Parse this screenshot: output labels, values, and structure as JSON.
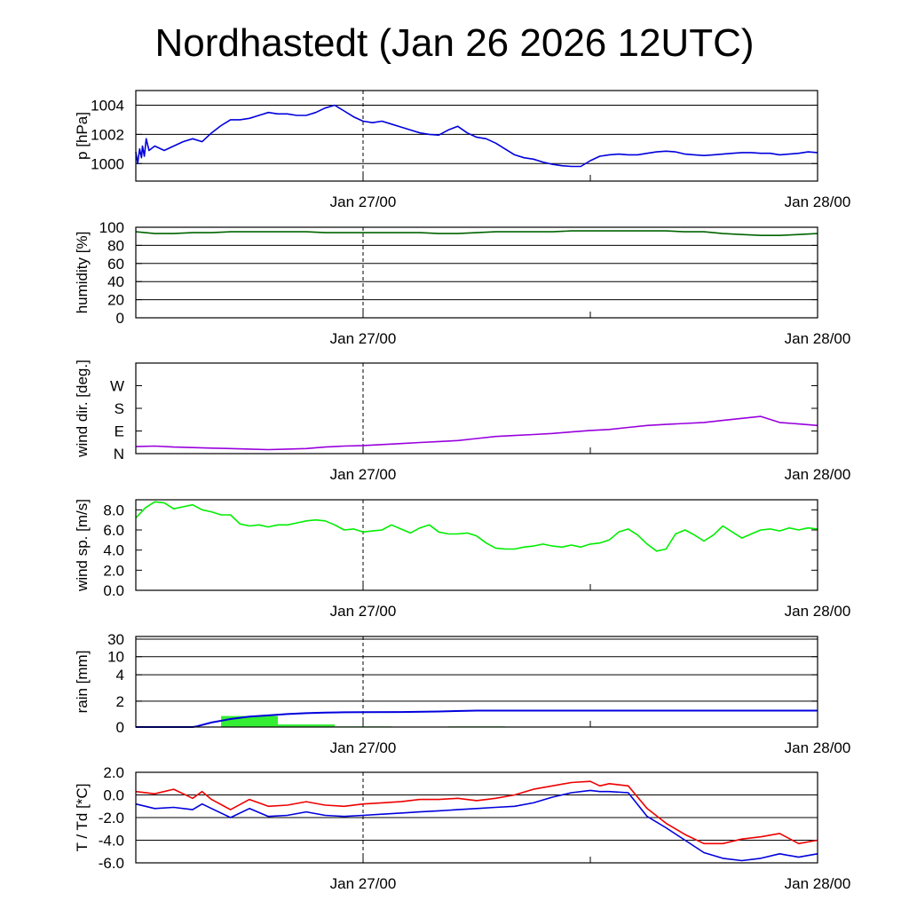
{
  "title": "Nordhastedt (Jan 26 2026 12UTC)",
  "colors": {
    "pressure": "#0000dd",
    "humidity": "#006400",
    "wind_dir": "#9900dd",
    "wind_speed": "#00ee00",
    "rain_bars": "#33ee33",
    "rain_total": "#0000dd",
    "temperature": "#ee0000",
    "dewpoint": "#0000dd"
  },
  "chart_data": [
    {
      "type": "line",
      "ylabel": "p [hPa]",
      "x_ticklabels": [
        "Jan 27/00",
        "Jan 28/00"
      ],
      "x": [
        0,
        0.1,
        0.2,
        0.3,
        0.35,
        0.45,
        0.55,
        0.7,
        1,
        1.5,
        2,
        2.5,
        3,
        3.5,
        4,
        4.5,
        5,
        5.5,
        6,
        6.5,
        7,
        7.5,
        8,
        8.5,
        9,
        9.5,
        10,
        10.5,
        11,
        11.5,
        12,
        12.5,
        13,
        13.5,
        14,
        14.5,
        15,
        15.5,
        16,
        16.5,
        17,
        17.5,
        18,
        18.5,
        19,
        19.5,
        20,
        20.5,
        21,
        21.5,
        22,
        22.5,
        23,
        23.5,
        24,
        24.5,
        25,
        25.5,
        26,
        26.5,
        27,
        27.5,
        28,
        28.5,
        29,
        29.5,
        30,
        30.5,
        31,
        31.5,
        32,
        32.5,
        33,
        33.5,
        34,
        34.5,
        35,
        35.5,
        36
      ],
      "series": [
        {
          "name": "",
          "values": [
            1000.8,
            1000.0,
            1001.0,
            1000.4,
            1001.2,
            1000.5,
            1001.7,
            1000.9,
            1001.2,
            1000.9,
            1001.2,
            1001.5,
            1001.7,
            1001.5,
            1002.1,
            1002.6,
            1003.0,
            1003.0,
            1003.1,
            1003.3,
            1003.5,
            1003.4,
            1003.4,
            1003.3,
            1003.3,
            1003.5,
            1003.8,
            1004.0,
            1003.6,
            1003.2,
            1002.9,
            1002.8,
            1002.9,
            1002.7,
            1002.5,
            1002.3,
            1002.1,
            1002.0,
            1001.95,
            1002.3,
            1002.55,
            1002.1,
            1001.8,
            1001.7,
            1001.4,
            1001.0,
            1000.6,
            1000.4,
            1000.3,
            1000.1,
            999.95,
            999.85,
            999.8,
            999.8,
            1000.2,
            1000.5,
            1000.6,
            1000.65,
            1000.6,
            1000.6,
            1000.7,
            1000.8,
            1000.85,
            1000.8,
            1000.65,
            1000.6,
            1000.55,
            1000.6,
            1000.65,
            1000.7,
            1000.75,
            1000.75,
            1000.7,
            1000.7,
            1000.6,
            1000.65,
            1000.7,
            1000.8,
            1000.75
          ]
        }
      ],
      "yticks": [
        1000,
        1002,
        1004
      ],
      "ytick_labels": [
        "1000",
        "1002",
        "1004"
      ],
      "ylim": [
        998.8,
        1005
      ],
      "grid": true
    },
    {
      "type": "line",
      "ylabel": "humidity [%]",
      "x_ticklabels": [
        "Jan 27/00",
        "Jan 28/00"
      ],
      "x": [
        0,
        1,
        2,
        3,
        4,
        5,
        6,
        7,
        8,
        9,
        10,
        11,
        12,
        13,
        14,
        15,
        16,
        17,
        18,
        19,
        20,
        21,
        22,
        23,
        24,
        25,
        26,
        27,
        28,
        29,
        30,
        31,
        32,
        33,
        34,
        35,
        36
      ],
      "series": [
        {
          "name": "",
          "values": [
            95,
            93,
            93,
            94,
            94,
            95,
            95,
            95,
            95,
            95,
            94,
            94,
            94,
            94,
            94,
            94,
            93,
            93,
            94,
            95,
            95,
            95,
            95,
            96,
            96,
            96,
            96,
            96,
            96,
            95,
            95,
            93,
            92,
            91,
            91,
            92,
            93
          ]
        }
      ],
      "yticks": [
        0,
        20,
        40,
        60,
        80,
        100
      ],
      "ytick_labels": [
        "0",
        "20",
        "40",
        "60",
        "80",
        "100"
      ],
      "ylim": [
        0,
        100
      ],
      "grid": true
    },
    {
      "type": "line",
      "ylabel": "wind dir. [deg.]",
      "x_ticklabels": [
        "Jan 27/00",
        "Jan 28/00"
      ],
      "x": [
        0,
        1,
        2,
        3,
        4,
        5,
        6,
        7,
        8,
        9,
        10,
        11,
        12,
        13,
        14,
        15,
        16,
        17,
        18,
        19,
        20,
        21,
        22,
        23,
        24,
        25,
        26,
        27,
        28,
        29,
        30,
        31,
        32,
        33,
        34,
        35,
        36
      ],
      "series": [
        {
          "name": "",
          "values": [
            28,
            30,
            26,
            24,
            22,
            20,
            18,
            16,
            18,
            20,
            26,
            30,
            32,
            36,
            40,
            44,
            48,
            52,
            60,
            68,
            72,
            76,
            80,
            86,
            92,
            96,
            104,
            112,
            116,
            120,
            124,
            132,
            140,
            148,
            124,
            118,
            112
          ]
        }
      ],
      "yticks": [
        0,
        90,
        180,
        270
      ],
      "ytick_labels": [
        "N",
        "E",
        "S",
        "W"
      ],
      "ylim": [
        0,
        360
      ],
      "grid": false
    },
    {
      "type": "line",
      "ylabel": "wind sp. [m/s]",
      "x_ticklabels": [
        "Jan 27/00",
        "Jan 28/00"
      ],
      "x": [
        0,
        0.5,
        1,
        1.5,
        2,
        2.5,
        3,
        3.5,
        4,
        4.5,
        5,
        5.5,
        6,
        6.5,
        7,
        7.5,
        8,
        8.5,
        9,
        9.5,
        10,
        10.5,
        11,
        11.5,
        12,
        12.5,
        13,
        13.5,
        14,
        14.5,
        15,
        15.5,
        16,
        16.5,
        17,
        17.5,
        18,
        18.5,
        19,
        19.5,
        20,
        20.5,
        21,
        21.5,
        22,
        22.5,
        23,
        23.5,
        24,
        24.5,
        25,
        25.5,
        26,
        26.5,
        27,
        27.5,
        28,
        28.5,
        29,
        29.5,
        30,
        30.5,
        31,
        31.5,
        32,
        32.5,
        33,
        33.5,
        34,
        34.5,
        35,
        35.5,
        36
      ],
      "series": [
        {
          "name": "",
          "values": [
            7.2,
            8.2,
            8.8,
            8.7,
            8.1,
            8.3,
            8.5,
            8.0,
            7.8,
            7.5,
            7.5,
            6.6,
            6.4,
            6.5,
            6.3,
            6.5,
            6.5,
            6.7,
            6.9,
            7.0,
            6.9,
            6.5,
            6.0,
            6.1,
            5.8,
            5.9,
            6.0,
            6.5,
            6.1,
            5.7,
            6.2,
            6.5,
            5.8,
            5.6,
            5.6,
            5.7,
            5.4,
            4.7,
            4.2,
            4.1,
            4.1,
            4.3,
            4.4,
            4.6,
            4.4,
            4.3,
            4.5,
            4.3,
            4.6,
            4.7,
            5.0,
            5.8,
            6.1,
            5.5,
            4.6,
            3.9,
            4.1,
            5.6,
            6.0,
            5.5,
            4.9,
            5.5,
            6.4,
            5.8,
            5.2,
            5.6,
            6.0,
            6.1,
            5.9,
            6.2,
            6.0,
            6.2,
            6.1
          ]
        }
      ],
      "yticks": [
        0,
        2,
        4,
        6,
        8
      ],
      "ytick_labels": [
        "0.0",
        "2.0",
        "4.0",
        "6.0",
        "8.0"
      ],
      "ylim": [
        0,
        9
      ],
      "grid": false
    },
    {
      "type": "bar",
      "ylabel": "rain [mm]",
      "x_ticklabels": [
        "Jan 27/00",
        "Jan 28/00"
      ],
      "bars": [
        {
          "x0": 4.5,
          "x1": 7.5,
          "value": 0.85
        },
        {
          "x0": 7.5,
          "x1": 10.5,
          "value": 0.2
        },
        {
          "x0": 10.5,
          "x1": 13.5,
          "value": 0.05
        },
        {
          "x0": 16.5,
          "x1": 19.5,
          "value": 0.05
        }
      ],
      "cumulative": {
        "x": [
          0,
          2,
          3,
          3.2,
          4,
          5,
          6,
          7,
          8,
          9,
          10,
          11,
          12,
          14,
          16,
          18,
          20,
          24,
          28,
          32,
          36
        ],
        "values": [
          0,
          0,
          0,
          0.05,
          0.35,
          0.62,
          0.8,
          0.9,
          1.0,
          1.07,
          1.12,
          1.14,
          1.15,
          1.16,
          1.2,
          1.27,
          1.27,
          1.27,
          1.27,
          1.27,
          1.27
        ]
      },
      "yticks": [
        0,
        2,
        4,
        10,
        30
      ],
      "ytick_labels": [
        "0",
        "2",
        "4",
        "10",
        "30"
      ],
      "ylim": [
        0,
        30
      ],
      "scale": "nonlinear",
      "grid": true
    },
    {
      "type": "line",
      "ylabel": "T / Td [*C]",
      "x_ticklabels": [
        "Jan 27/00",
        "Jan 28/00"
      ],
      "x": [
        0,
        1,
        2,
        3,
        3.5,
        4,
        5,
        6,
        7,
        8,
        9,
        10,
        11,
        12,
        13,
        14,
        15,
        16,
        17,
        18,
        19,
        20,
        21,
        22,
        23,
        24,
        24.5,
        25,
        26,
        27,
        28,
        29,
        30,
        31,
        32,
        33,
        34,
        35,
        36
      ],
      "series": [
        {
          "name": "T",
          "values": [
            0.3,
            0.1,
            0.5,
            -0.3,
            0.3,
            -0.4,
            -1.3,
            -0.4,
            -1.0,
            -0.9,
            -0.6,
            -0.9,
            -1.0,
            -0.8,
            -0.7,
            -0.6,
            -0.4,
            -0.4,
            -0.3,
            -0.5,
            -0.3,
            0.0,
            0.5,
            0.8,
            1.1,
            1.2,
            0.8,
            1.0,
            0.8,
            -1.2,
            -2.5,
            -3.5,
            -4.3,
            -4.3,
            -3.9,
            -3.7,
            -3.4,
            -4.3,
            -4.0
          ]
        },
        {
          "name": "Td",
          "values": [
            -0.8,
            -1.2,
            -1.1,
            -1.3,
            -0.8,
            -1.2,
            -2.0,
            -1.2,
            -1.9,
            -1.8,
            -1.5,
            -1.8,
            -1.9,
            -1.8,
            -1.7,
            -1.6,
            -1.5,
            -1.4,
            -1.3,
            -1.2,
            -1.1,
            -1.0,
            -0.7,
            -0.2,
            0.2,
            0.4,
            0.3,
            0.3,
            0.2,
            -1.9,
            -2.9,
            -4.0,
            -5.1,
            -5.6,
            -5.8,
            -5.6,
            -5.2,
            -5.5,
            -5.2
          ]
        }
      ],
      "yticks": [
        -6,
        -4,
        -2,
        0,
        2
      ],
      "ytick_labels": [
        "-6.0",
        "-4.0",
        "-2.0",
        "0.0",
        "2.0"
      ],
      "ylim": [
        -6,
        2
      ],
      "grid": true
    }
  ]
}
